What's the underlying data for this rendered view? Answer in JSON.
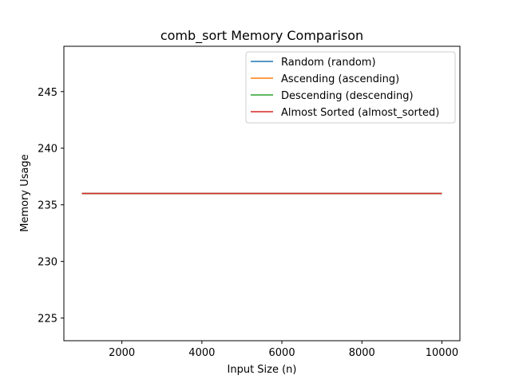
{
  "chart_data": {
    "type": "line",
    "title": "comb_sort Memory Comparison",
    "xlabel": "Input Size (n)",
    "ylabel": "Memory Usage",
    "xlim": [
      550,
      10450
    ],
    "ylim": [
      223,
      249
    ],
    "x_ticks": [
      2000,
      4000,
      6000,
      8000,
      10000
    ],
    "y_ticks": [
      225,
      230,
      235,
      240,
      245
    ],
    "x": [
      1000,
      10000
    ],
    "series": [
      {
        "name": "Random (random)",
        "color": "#1f77b4",
        "values": [
          236,
          236
        ]
      },
      {
        "name": "Ascending (ascending)",
        "color": "#ff7f0e",
        "values": [
          236,
          236
        ]
      },
      {
        "name": "Descending (descending)",
        "color": "#2ca02c",
        "values": [
          236,
          236
        ]
      },
      {
        "name": "Almost Sorted (almost_sorted)",
        "color": "#d62728",
        "values": [
          236,
          236
        ]
      }
    ],
    "legend_position": "upper-right",
    "grid": false
  }
}
